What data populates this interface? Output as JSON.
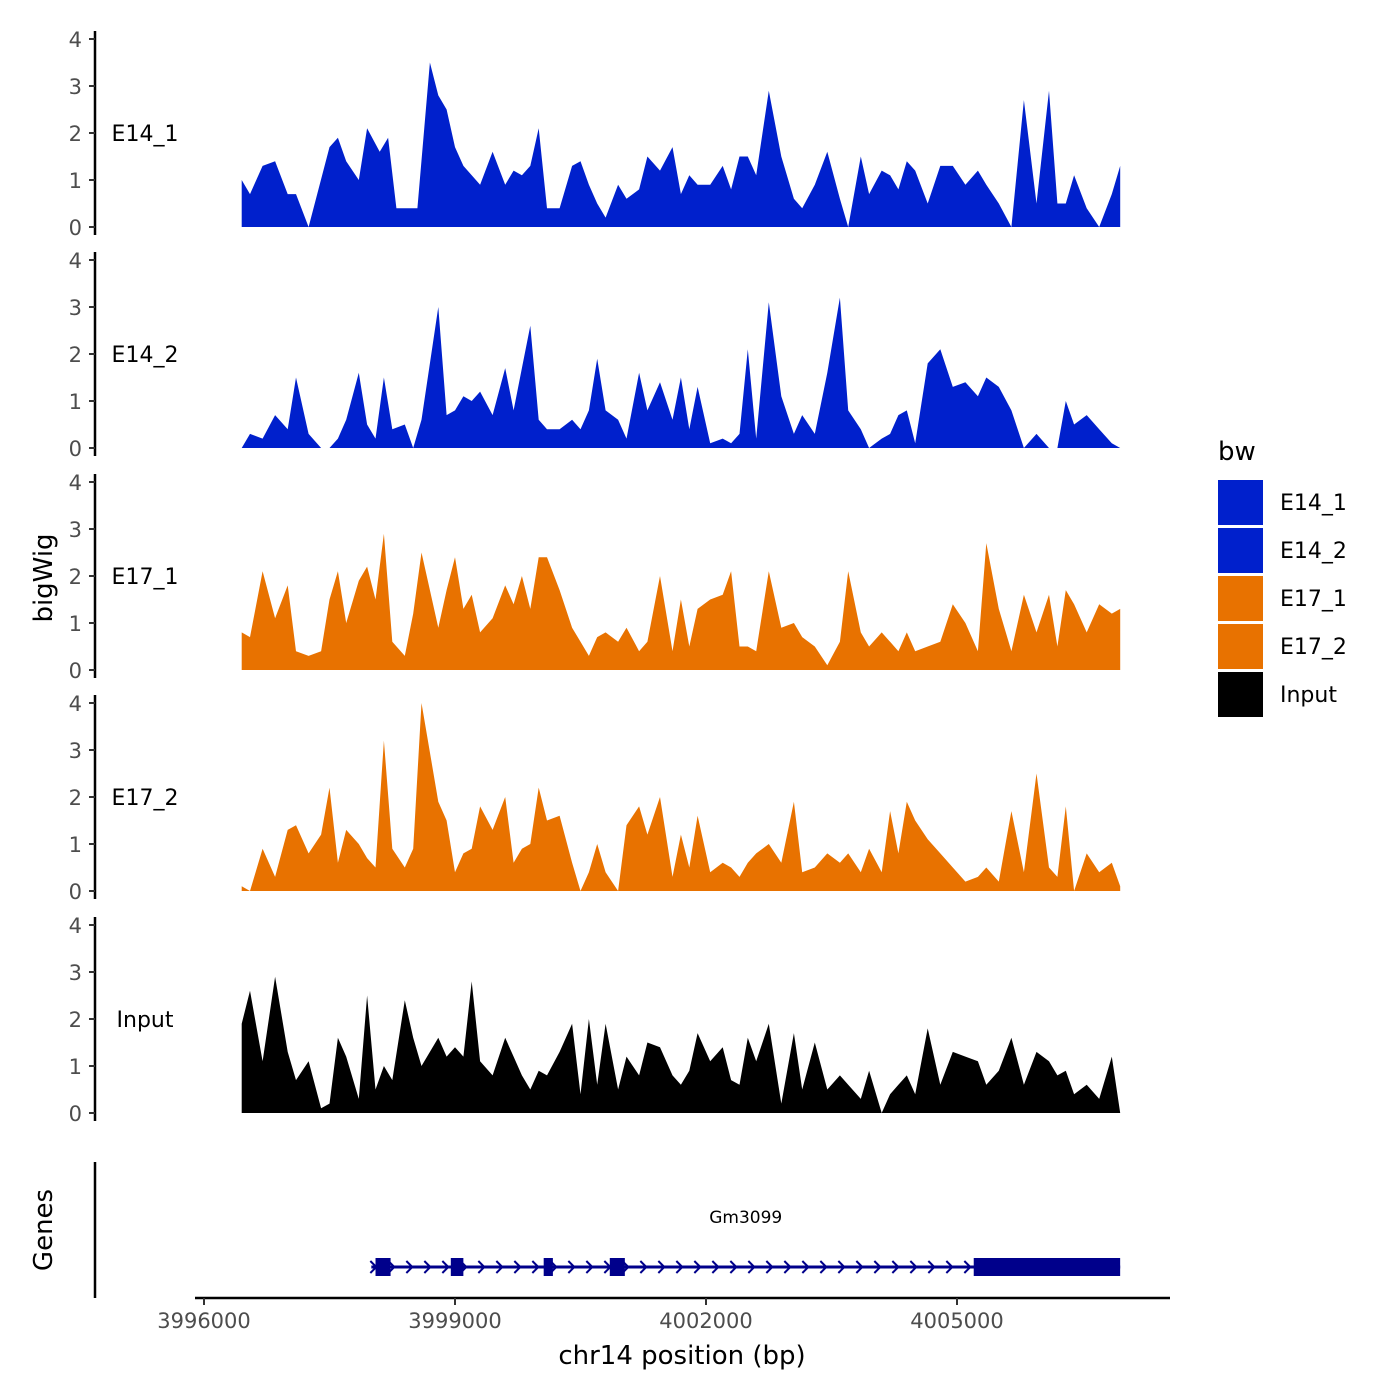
{
  "chart_data": {
    "type": "area",
    "title": "",
    "xlabel": "chr14 position (bp)",
    "ylabel": "bigWig",
    "genes_label": "Genes",
    "xlim": [
      3995900,
      4007500
    ],
    "x_ticks": [
      3996000,
      3999000,
      4002000,
      4005000
    ],
    "x_tick_labels": [
      "3996000",
      "3999000",
      "4002000",
      "4005000"
    ],
    "ylim": [
      0,
      4
    ],
    "y_ticks": [
      0,
      1,
      2,
      3,
      4
    ],
    "y_tick_labels": [
      "0",
      "1",
      "2",
      "3",
      "4"
    ],
    "legend": {
      "title": "bw",
      "position": "right",
      "entries": [
        {
          "name": "E14_1",
          "color": "#0020CC"
        },
        {
          "name": "E14_2",
          "color": "#0020CC"
        },
        {
          "name": "E17_1",
          "color": "#E87200"
        },
        {
          "name": "E17_2",
          "color": "#E87200"
        },
        {
          "name": "Input",
          "color": "#000000"
        }
      ]
    },
    "series": [
      {
        "name": "E14_1",
        "color": "#0020CC",
        "x": [
          3996450,
          3996550,
          3996700,
          3996850,
          3997000,
          3997100,
          3997250,
          3997500,
          3997600,
          3997700,
          3997850,
          3997950,
          3998100,
          3998200,
          3998300,
          3998400,
          3998550,
          3998700,
          3998800,
          3998900,
          3999000,
          3999100,
          3999200,
          3999300,
          3999450,
          3999600,
          3999700,
          3999800,
          3999900,
          4000000,
          4000100,
          4000250,
          4000400,
          4000500,
          4000600,
          4000700,
          4000800,
          4000950,
          4001050,
          4001200,
          4001300,
          4001450,
          4001600,
          4001700,
          4001800,
          4001900,
          4002050,
          4002200,
          4002300,
          4002400,
          4002500,
          4002600,
          4002750,
          4002900,
          4003050,
          4003150,
          4003300,
          4003450,
          4003600,
          4003700,
          4003850,
          4003950,
          4004100,
          4004200,
          4004300,
          4004400,
          4004500,
          4004650,
          4004800,
          4004950,
          4005100,
          4005250,
          4005350,
          4005500,
          4005650,
          4005800,
          4005950,
          4006100,
          4006200,
          4006300,
          4006400,
          4006550,
          4006700,
          4006850,
          4006950
        ],
        "y": [
          1.0,
          0.7,
          1.3,
          1.4,
          0.7,
          0.7,
          0.0,
          1.7,
          1.9,
          1.4,
          1.0,
          2.1,
          1.6,
          1.9,
          0.4,
          0.4,
          0.4,
          3.5,
          2.8,
          2.5,
          1.7,
          1.3,
          1.1,
          0.9,
          1.6,
          0.9,
          1.2,
          1.1,
          1.3,
          2.1,
          0.4,
          0.4,
          1.3,
          1.4,
          0.9,
          0.5,
          0.2,
          0.9,
          0.6,
          0.8,
          1.5,
          1.2,
          1.7,
          0.7,
          1.1,
          0.9,
          0.9,
          1.3,
          0.8,
          1.5,
          1.5,
          1.1,
          2.9,
          1.5,
          0.6,
          0.4,
          0.9,
          1.6,
          0.6,
          0.0,
          1.5,
          0.7,
          1.2,
          1.1,
          0.8,
          1.4,
          1.2,
          0.5,
          1.3,
          1.3,
          0.9,
          1.2,
          0.9,
          0.5,
          0.0,
          2.7,
          0.5,
          2.9,
          0.5,
          0.5,
          1.1,
          0.4,
          0.0,
          0.7,
          1.3
        ]
      },
      {
        "name": "E14_2",
        "color": "#0020CC",
        "x": [
          3996450,
          3996550,
          3996700,
          3996850,
          3997000,
          3997100,
          3997250,
          3997400,
          3997500,
          3997600,
          3997700,
          3997850,
          3997950,
          3998050,
          3998150,
          3998250,
          3998400,
          3998500,
          3998600,
          3998800,
          3998900,
          3999000,
          3999100,
          3999200,
          3999300,
          3999450,
          3999600,
          3999700,
          3999800,
          3999900,
          4000000,
          4000100,
          4000250,
          4000400,
          4000500,
          4000600,
          4000700,
          4000800,
          4000950,
          4001050,
          4001200,
          4001300,
          4001450,
          4001600,
          4001700,
          4001800,
          4001900,
          4002050,
          4002200,
          4002300,
          4002400,
          4002500,
          4002600,
          4002750,
          4002900,
          4003050,
          4003150,
          4003300,
          4003450,
          4003600,
          4003700,
          4003850,
          4003950,
          4004100,
          4004200,
          4004300,
          4004400,
          4004500,
          4004650,
          4004800,
          4004950,
          4005100,
          4005250,
          4005350,
          4005500,
          4005650,
          4005800,
          4005950,
          4006100,
          4006200,
          4006300,
          4006400,
          4006550,
          4006700,
          4006850,
          4006950
        ],
        "y": [
          0.0,
          0.3,
          0.2,
          0.7,
          0.4,
          1.5,
          0.3,
          0.0,
          0.0,
          0.2,
          0.6,
          1.6,
          0.5,
          0.2,
          1.5,
          0.4,
          0.5,
          0.0,
          0.6,
          3.0,
          0.7,
          0.8,
          1.1,
          1.0,
          1.2,
          0.7,
          1.7,
          0.8,
          1.7,
          2.6,
          0.6,
          0.4,
          0.4,
          0.6,
          0.4,
          0.8,
          1.9,
          0.8,
          0.6,
          0.2,
          1.6,
          0.8,
          1.4,
          0.6,
          1.5,
          0.4,
          1.3,
          0.1,
          0.2,
          0.1,
          0.3,
          2.1,
          0.2,
          3.1,
          1.1,
          0.3,
          0.7,
          0.3,
          1.6,
          3.2,
          0.8,
          0.4,
          0.0,
          0.2,
          0.3,
          0.7,
          0.8,
          0.1,
          1.8,
          2.1,
          1.3,
          1.4,
          1.1,
          1.5,
          1.3,
          0.8,
          0.0,
          0.3,
          0.0,
          0.0,
          1.0,
          0.5,
          0.7,
          0.4,
          0.1,
          0.0
        ]
      },
      {
        "name": "E17_1",
        "color": "#E87200",
        "x": [
          3996450,
          3996550,
          3996700,
          3996850,
          3997000,
          3997100,
          3997250,
          3997400,
          3997500,
          3997600,
          3997700,
          3997850,
          3997950,
          3998050,
          3998150,
          3998250,
          3998400,
          3998500,
          3998600,
          3998800,
          3998900,
          3999000,
          3999100,
          3999200,
          3999300,
          3999450,
          3999600,
          3999700,
          3999800,
          3999900,
          4000000,
          4000100,
          4000250,
          4000400,
          4000500,
          4000600,
          4000700,
          4000800,
          4000950,
          4001050,
          4001200,
          4001300,
          4001450,
          4001600,
          4001700,
          4001800,
          4001900,
          4002050,
          4002200,
          4002300,
          4002400,
          4002500,
          4002600,
          4002750,
          4002900,
          4003050,
          4003150,
          4003300,
          4003450,
          4003600,
          4003700,
          4003850,
          4003950,
          4004100,
          4004200,
          4004300,
          4004400,
          4004500,
          4004650,
          4004800,
          4004950,
          4005100,
          4005250,
          4005350,
          4005500,
          4005650,
          4005800,
          4005950,
          4006100,
          4006200,
          4006300,
          4006400,
          4006550,
          4006700,
          4006850,
          4006950
        ],
        "y": [
          0.8,
          0.7,
          2.1,
          1.1,
          1.8,
          0.4,
          0.3,
          0.4,
          1.5,
          2.1,
          1.0,
          1.9,
          2.2,
          1.5,
          2.9,
          0.6,
          0.3,
          1.2,
          2.5,
          0.9,
          1.7,
          2.4,
          1.3,
          1.6,
          0.8,
          1.1,
          1.8,
          1.4,
          2.0,
          1.3,
          2.4,
          2.4,
          1.7,
          0.9,
          0.6,
          0.3,
          0.7,
          0.8,
          0.6,
          0.9,
          0.4,
          0.6,
          2.0,
          0.4,
          1.5,
          0.5,
          1.3,
          1.5,
          1.6,
          2.1,
          0.5,
          0.5,
          0.4,
          2.1,
          0.9,
          1.0,
          0.7,
          0.5,
          0.1,
          0.6,
          2.1,
          0.8,
          0.5,
          0.8,
          0.6,
          0.4,
          0.8,
          0.4,
          0.5,
          0.6,
          1.4,
          1.0,
          0.4,
          2.7,
          1.3,
          0.4,
          1.6,
          0.8,
          1.6,
          0.5,
          1.7,
          1.4,
          0.8,
          1.4,
          1.2,
          1.3
        ]
      },
      {
        "name": "E17_2",
        "color": "#E87200",
        "x": [
          3996450,
          3996550,
          3996700,
          3996850,
          3997000,
          3997100,
          3997250,
          3997400,
          3997500,
          3997600,
          3997700,
          3997850,
          3997950,
          3998050,
          3998150,
          3998250,
          3998400,
          3998500,
          3998600,
          3998800,
          3998900,
          3999000,
          3999100,
          3999200,
          3999300,
          3999450,
          3999600,
          3999700,
          3999800,
          3999900,
          4000000,
          4000100,
          4000250,
          4000400,
          4000500,
          4000600,
          4000700,
          4000800,
          4000950,
          4001050,
          4001200,
          4001300,
          4001450,
          4001600,
          4001700,
          4001800,
          4001900,
          4002050,
          4002200,
          4002300,
          4002400,
          4002500,
          4002600,
          4002750,
          4002900,
          4003050,
          4003150,
          4003300,
          4003450,
          4003600,
          4003700,
          4003850,
          4003950,
          4004100,
          4004200,
          4004300,
          4004400,
          4004500,
          4004650,
          4004800,
          4004950,
          4005100,
          4005250,
          4005350,
          4005500,
          4005650,
          4005800,
          4005950,
          4006100,
          4006200,
          4006300,
          4006400,
          4006550,
          4006700,
          4006850,
          4006950
        ],
        "y": [
          0.1,
          0.0,
          0.9,
          0.3,
          1.3,
          1.4,
          0.8,
          1.2,
          2.2,
          0.6,
          1.3,
          1.0,
          0.7,
          0.5,
          3.2,
          0.9,
          0.5,
          0.9,
          4.0,
          1.9,
          1.5,
          0.4,
          0.8,
          0.9,
          1.8,
          1.3,
          2.0,
          0.6,
          0.9,
          1.0,
          2.2,
          1.5,
          1.6,
          0.6,
          0.0,
          0.4,
          1.0,
          0.4,
          0.0,
          1.4,
          1.8,
          1.2,
          2.0,
          0.3,
          1.2,
          0.5,
          1.6,
          0.4,
          0.6,
          0.5,
          0.3,
          0.6,
          0.8,
          1.0,
          0.6,
          1.9,
          0.4,
          0.5,
          0.8,
          0.6,
          0.8,
          0.4,
          0.9,
          0.4,
          1.7,
          0.8,
          1.9,
          1.5,
          1.1,
          0.8,
          0.5,
          0.2,
          0.3,
          0.5,
          0.2,
          1.7,
          0.4,
          2.5,
          0.5,
          0.3,
          1.8,
          0.0,
          0.8,
          0.4,
          0.6,
          0.1
        ]
      },
      {
        "name": "Input",
        "color": "#000000",
        "x": [
          3996450,
          3996550,
          3996700,
          3996850,
          3997000,
          3997100,
          3997250,
          3997400,
          3997500,
          3997600,
          3997700,
          3997850,
          3997950,
          3998050,
          3998150,
          3998250,
          3998400,
          3998500,
          3998600,
          3998800,
          3998900,
          3999000,
          3999100,
          3999200,
          3999300,
          3999450,
          3999600,
          3999700,
          3999800,
          3999900,
          4000000,
          4000100,
          4000250,
          4000400,
          4000500,
          4000600,
          4000700,
          4000800,
          4000950,
          4001050,
          4001200,
          4001300,
          4001450,
          4001600,
          4001700,
          4001800,
          4001900,
          4002050,
          4002200,
          4002300,
          4002400,
          4002500,
          4002600,
          4002750,
          4002900,
          4003050,
          4003150,
          4003300,
          4003450,
          4003600,
          4003700,
          4003850,
          4003950,
          4004100,
          4004200,
          4004300,
          4004400,
          4004500,
          4004650,
          4004800,
          4004950,
          4005100,
          4005250,
          4005350,
          4005500,
          4005650,
          4005800,
          4005950,
          4006100,
          4006200,
          4006300,
          4006400,
          4006550,
          4006700,
          4006850,
          4006950
        ],
        "y": [
          1.9,
          2.6,
          1.1,
          2.9,
          1.3,
          0.7,
          1.1,
          0.1,
          0.2,
          1.6,
          1.2,
          0.3,
          2.5,
          0.5,
          1.0,
          0.7,
          2.4,
          1.6,
          1.0,
          1.6,
          1.2,
          1.4,
          1.2,
          2.8,
          1.1,
          0.8,
          1.6,
          1.2,
          0.8,
          0.5,
          0.9,
          0.8,
          1.3,
          1.9,
          0.4,
          2.0,
          0.6,
          1.9,
          0.5,
          1.2,
          0.8,
          1.5,
          1.4,
          0.8,
          0.6,
          0.9,
          1.7,
          1.1,
          1.4,
          0.7,
          0.6,
          1.6,
          1.1,
          1.9,
          0.2,
          1.7,
          0.5,
          1.5,
          0.5,
          0.8,
          0.6,
          0.3,
          0.9,
          0.0,
          0.4,
          0.6,
          0.8,
          0.4,
          1.8,
          0.6,
          1.3,
          1.2,
          1.1,
          0.6,
          0.9,
          1.6,
          0.6,
          1.3,
          1.1,
          0.8,
          0.9,
          0.4,
          0.6,
          0.3,
          1.2,
          0.0
        ]
      }
    ],
    "genes": [
      {
        "name": "Gm3099",
        "start": 3998000,
        "end": 4006950,
        "strand": "+",
        "color": "#00008B",
        "exons": [
          [
            3998050,
            3998230
          ],
          [
            3998950,
            3999100
          ],
          [
            4000060,
            4000170
          ],
          [
            4000850,
            4001030
          ],
          [
            4005200,
            4006950
          ]
        ]
      }
    ]
  }
}
